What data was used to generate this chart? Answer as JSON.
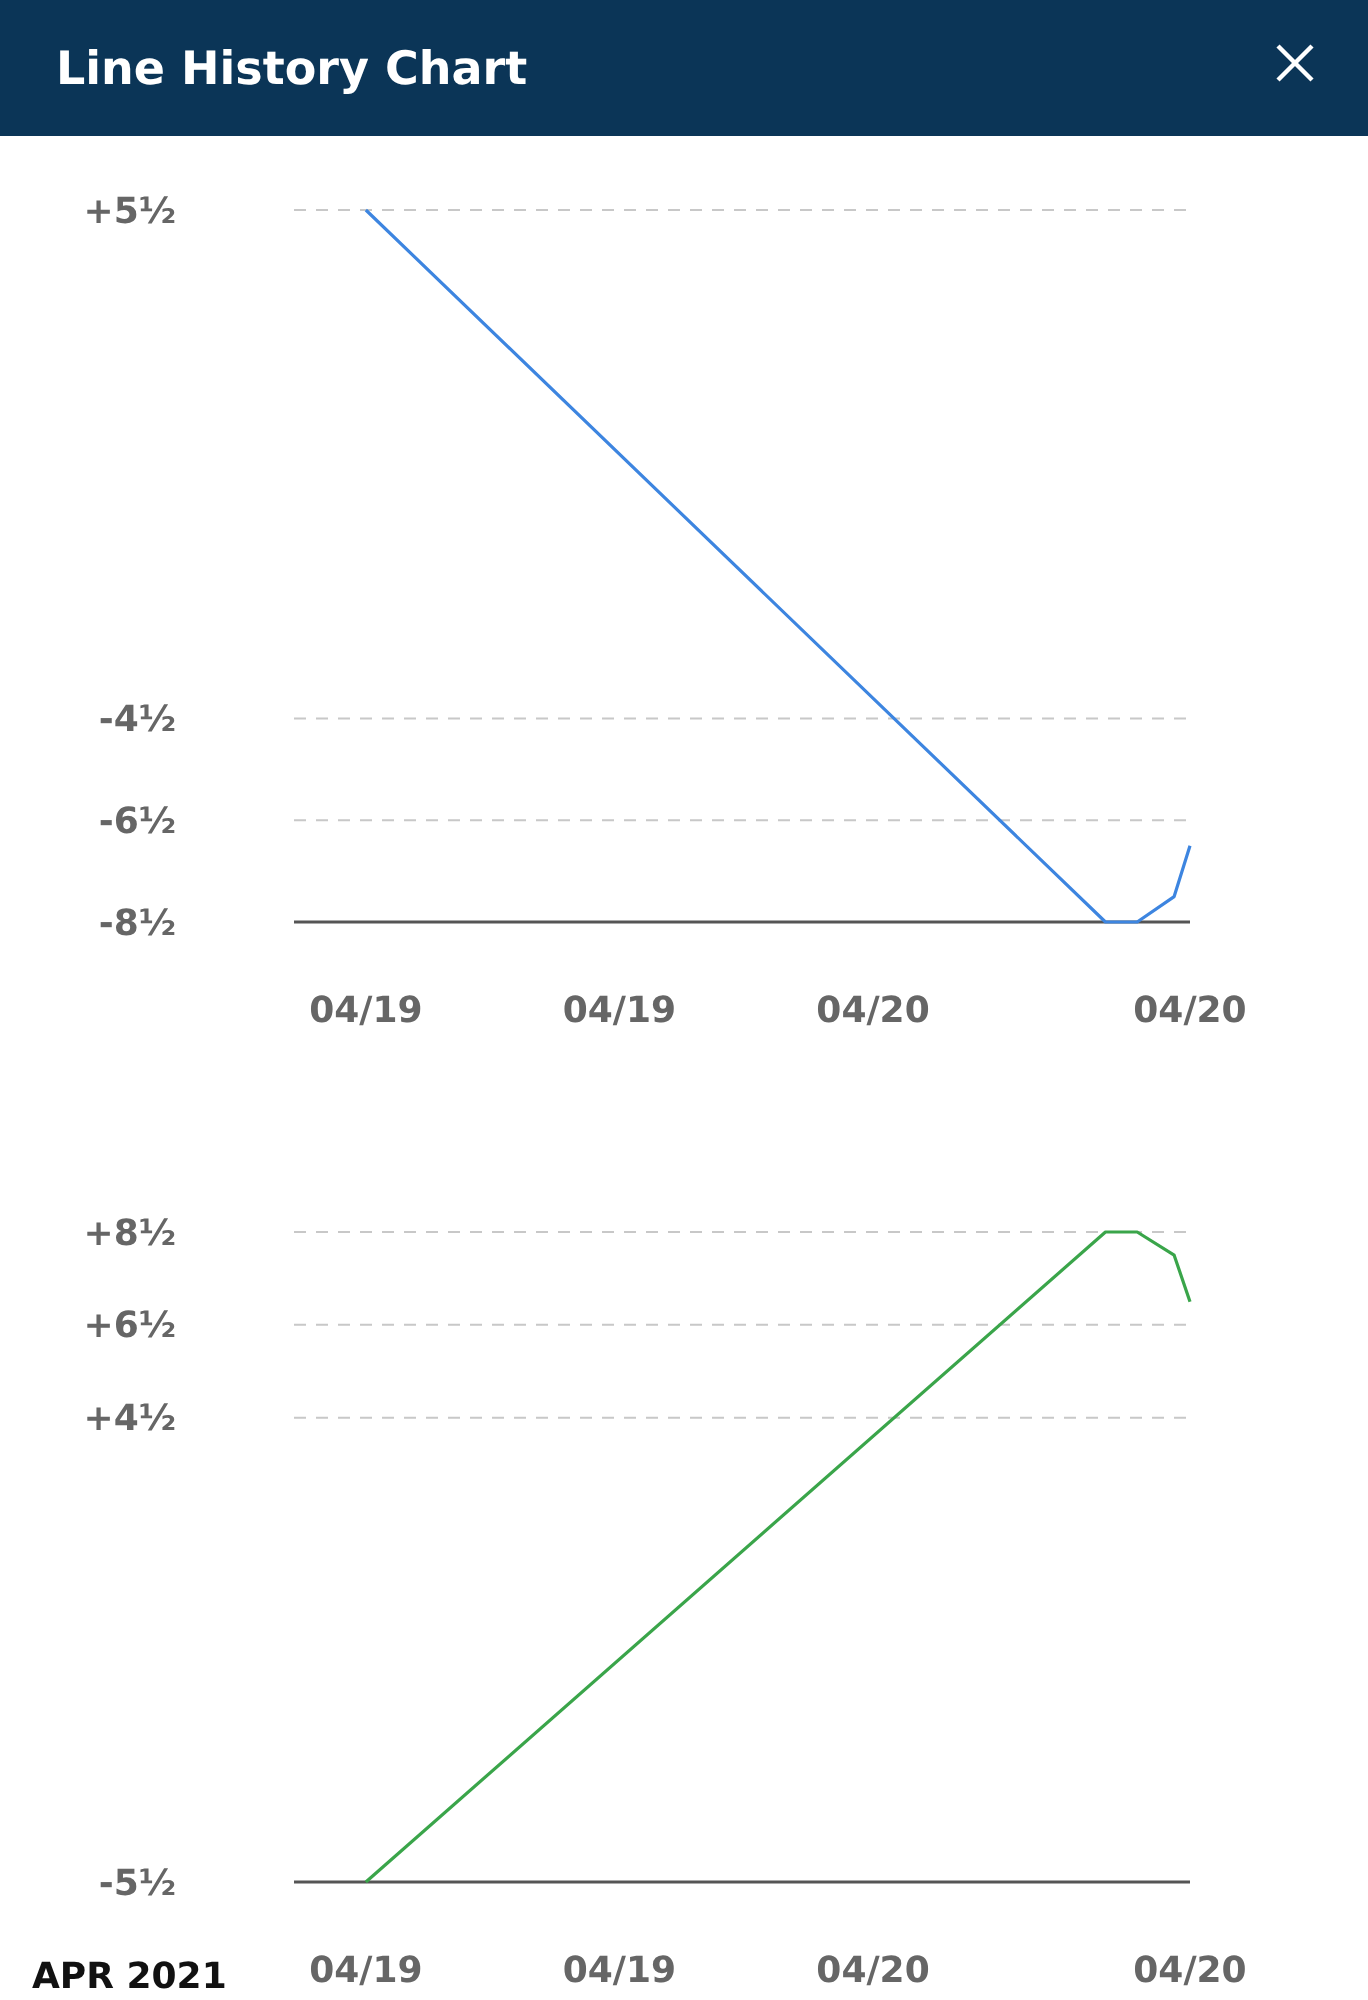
{
  "chart_data": [
    {
      "type": "line",
      "title": "Line History Chart",
      "x": [
        "2021-04-19T06:00",
        "2021-04-20T17:00",
        "2021-04-20T18:30",
        "2021-04-20T20:15",
        "2021-04-20T21:00"
      ],
      "series": [
        {
          "color": "#3d85e0",
          "values": [
            5.5,
            -8.5,
            -8.5,
            -8,
            -7
          ]
        }
      ],
      "xlim": [
        "2021-04-19T02:36",
        "2021-04-20T21:00"
      ],
      "xticks": [
        {
          "value": "2021-04-19T06:00",
          "label": "04/19"
        },
        {
          "value": "2021-04-19T18:00",
          "label": "04/19"
        },
        {
          "value": "2021-04-20T06:00",
          "label": "04/20"
        },
        {
          "value": "2021-04-20T21:00",
          "label": "04/20"
        }
      ],
      "ylim": [
        -8.5,
        5.5
      ],
      "yticks": [
        {
          "value": 5.5,
          "label": "+5½"
        },
        {
          "value": -4.5,
          "label": "-4½"
        },
        {
          "value": -6.5,
          "label": "-6½"
        },
        {
          "value": -8.5,
          "label": "-8½"
        }
      ],
      "grid": "y"
    },
    {
      "type": "line",
      "xlabel": "APR 2021",
      "x": [
        "2021-04-19T06:00",
        "2021-04-20T17:00",
        "2021-04-20T18:30",
        "2021-04-20T20:15",
        "2021-04-20T21:00"
      ],
      "series": [
        {
          "color": "#3aa54a",
          "values": [
            -5.5,
            8.5,
            8.5,
            8,
            7
          ]
        }
      ],
      "xlim": [
        "2021-04-19T02:36",
        "2021-04-20T21:00"
      ],
      "xticks": [
        {
          "value": "2021-04-19T06:00",
          "label": "04/19"
        },
        {
          "value": "2021-04-19T18:00",
          "label": "04/19"
        },
        {
          "value": "2021-04-20T06:00",
          "label": "04/20"
        },
        {
          "value": "2021-04-20T21:00",
          "label": "04/20"
        }
      ],
      "ylim": [
        -5.5,
        8.5
      ],
      "yticks": [
        {
          "value": 8.5,
          "label": "+8½"
        },
        {
          "value": 6.5,
          "label": "+6½"
        },
        {
          "value": 4.5,
          "label": "+4½"
        },
        {
          "value": -5.5,
          "label": "-5½"
        }
      ],
      "grid": "y"
    }
  ]
}
